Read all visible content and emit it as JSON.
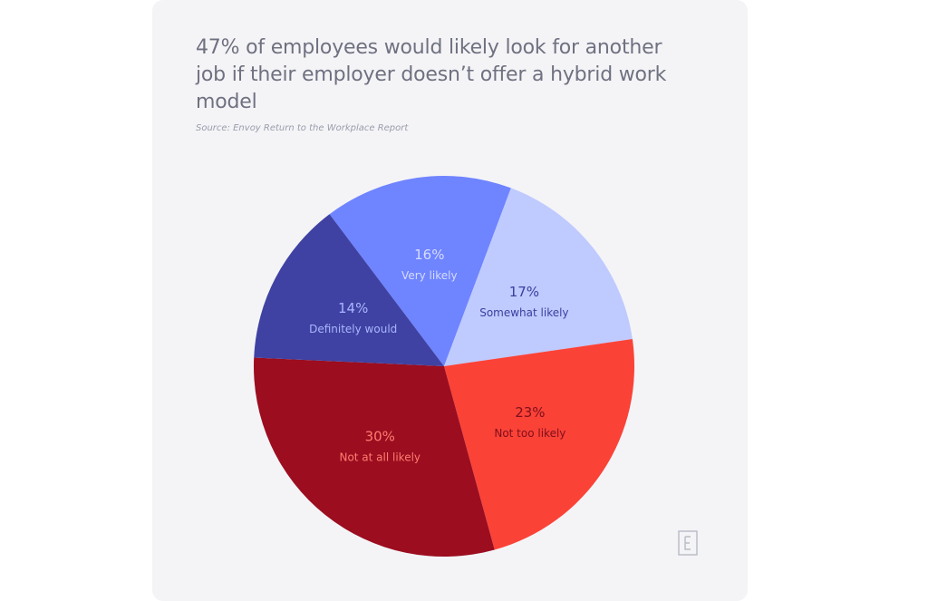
{
  "title": "47% of employees would likely look for another job if their employer doesn’t offer a hybrid work model",
  "source": "Source: Envoy Return to the Workplace Report",
  "logo_icon": "envoy-e-icon",
  "chart_data": {
    "type": "pie",
    "title": "47% of employees would likely look for another job if their employer doesn’t offer a hybrid work model",
    "start_angle_deg": -37,
    "direction": "clockwise",
    "slices": [
      {
        "label": "Very likely",
        "value": 16,
        "value_label": "16%",
        "color": "#6f84ff",
        "text_color": "#d5dcff"
      },
      {
        "label": "Somewhat likely",
        "value": 17,
        "value_label": "17%",
        "color": "#bfcaff",
        "text_color": "#3b3f9e"
      },
      {
        "label": "Not too likely",
        "value": 23,
        "value_label": "23%",
        "color": "#fb4237",
        "text_color": "#7d0f1c"
      },
      {
        "label": "Not at all likely",
        "value": 30,
        "value_label": "30%",
        "color": "#9b0d1f",
        "text_color": "#ff7c70"
      },
      {
        "label": "Definitely would",
        "value": 14,
        "value_label": "14%",
        "color": "#3f42a2",
        "text_color": "#a9b6ff"
      }
    ]
  }
}
